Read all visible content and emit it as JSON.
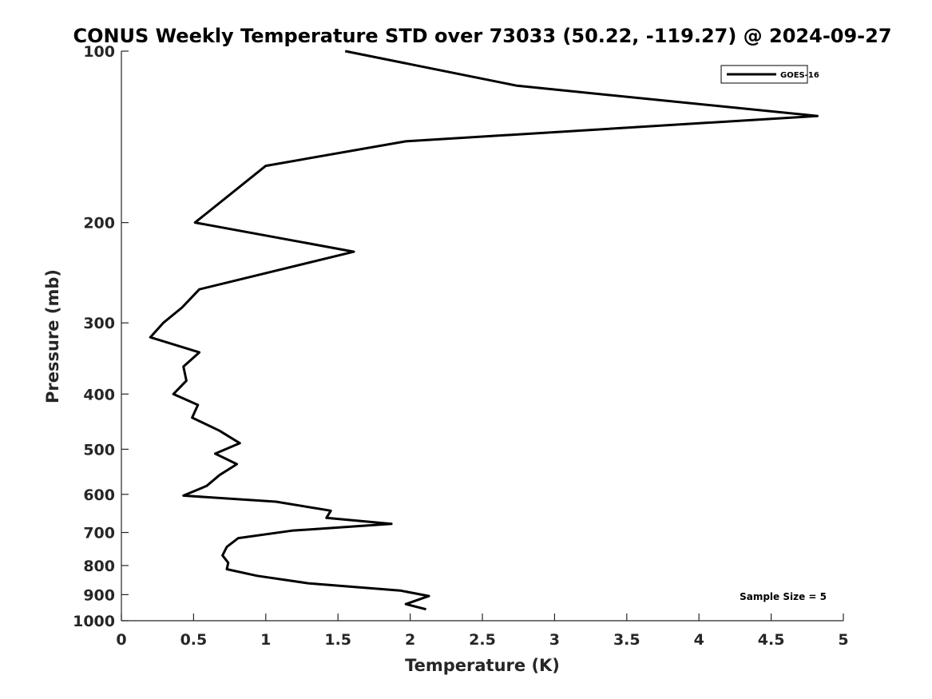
{
  "chart_data": {
    "type": "line",
    "title": "CONUS Weekly Temperature STD over 73033 (50.22, -119.27) @ 2024-09-27",
    "xlabel": "Temperature (K)",
    "ylabel": "Pressure (mb)",
    "xlim": [
      0,
      5
    ],
    "ylim": [
      100,
      1000
    ],
    "yscale": "log",
    "y_reversed": true,
    "xticks": [
      0,
      0.5,
      1,
      1.5,
      2,
      2.5,
      3,
      3.5,
      4,
      4.5,
      5
    ],
    "xtick_labels": [
      "0",
      "0.5",
      "1",
      "1.5",
      "2",
      "2.5",
      "3",
      "3.5",
      "4",
      "4.5",
      "5"
    ],
    "yticks": [
      100,
      200,
      300,
      400,
      500,
      600,
      700,
      800,
      900,
      1000
    ],
    "ytick_labels": [
      "100",
      "200",
      "300",
      "400",
      "500",
      "600",
      "700",
      "800",
      "900",
      "1000"
    ],
    "grid": false,
    "legend_position": "top-right",
    "annotation": "Sample Size = 5",
    "series": [
      {
        "name": "GOES-16",
        "color": "#000000",
        "x": [
          1.55,
          2.74,
          4.82,
          1.97,
          1.0,
          0.51,
          1.61,
          0.54,
          0.42,
          0.29,
          0.2,
          0.54,
          0.43,
          0.45,
          0.36,
          0.53,
          0.49,
          0.68,
          0.82,
          0.65,
          0.8,
          0.68,
          0.59,
          0.43,
          1.07,
          1.45,
          1.42,
          1.87,
          1.18,
          0.81,
          0.73,
          0.7,
          0.74,
          0.73,
          0.94,
          1.3,
          1.93,
          2.13,
          1.97,
          2.11
        ],
        "y": [
          100,
          115,
          130,
          144,
          159,
          200,
          225,
          262,
          282,
          300,
          318,
          338,
          358,
          379,
          400,
          418,
          440,
          464,
          488,
          509,
          531,
          555,
          580,
          603,
          618,
          641,
          660,
          676,
          695,
          716,
          742,
          768,
          791,
          812,
          834,
          860,
          885,
          905,
          935,
          955
        ]
      }
    ]
  }
}
